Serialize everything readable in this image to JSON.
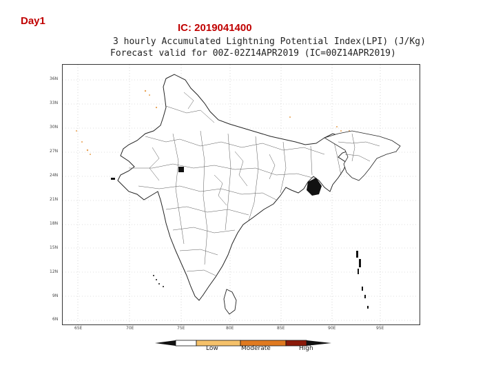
{
  "header": {
    "day_label": "Day1",
    "ic_label": "IC: 2019041400"
  },
  "map": {
    "title_line1": "3 hourly Accumulated Lightning Potential Index(LPI) (J/Kg)",
    "title_line2": "Forecast valid for 00Z-02Z14APR2019 (IC=00Z14APR2019)",
    "lat_ticks": [
      "36N",
      "33N",
      "30N",
      "27N",
      "24N",
      "21N",
      "18N",
      "15N",
      "12N",
      "9N",
      "6N"
    ],
    "lon_ticks": [
      "65E",
      "70E",
      "75E",
      "80E",
      "85E",
      "90E",
      "95E"
    ]
  },
  "legend": {
    "labels": [
      "Low",
      "Moderate",
      "High"
    ],
    "colors": [
      "#ffffff",
      "#f5c16a",
      "#e07a20",
      "#8b1a0a"
    ]
  }
}
